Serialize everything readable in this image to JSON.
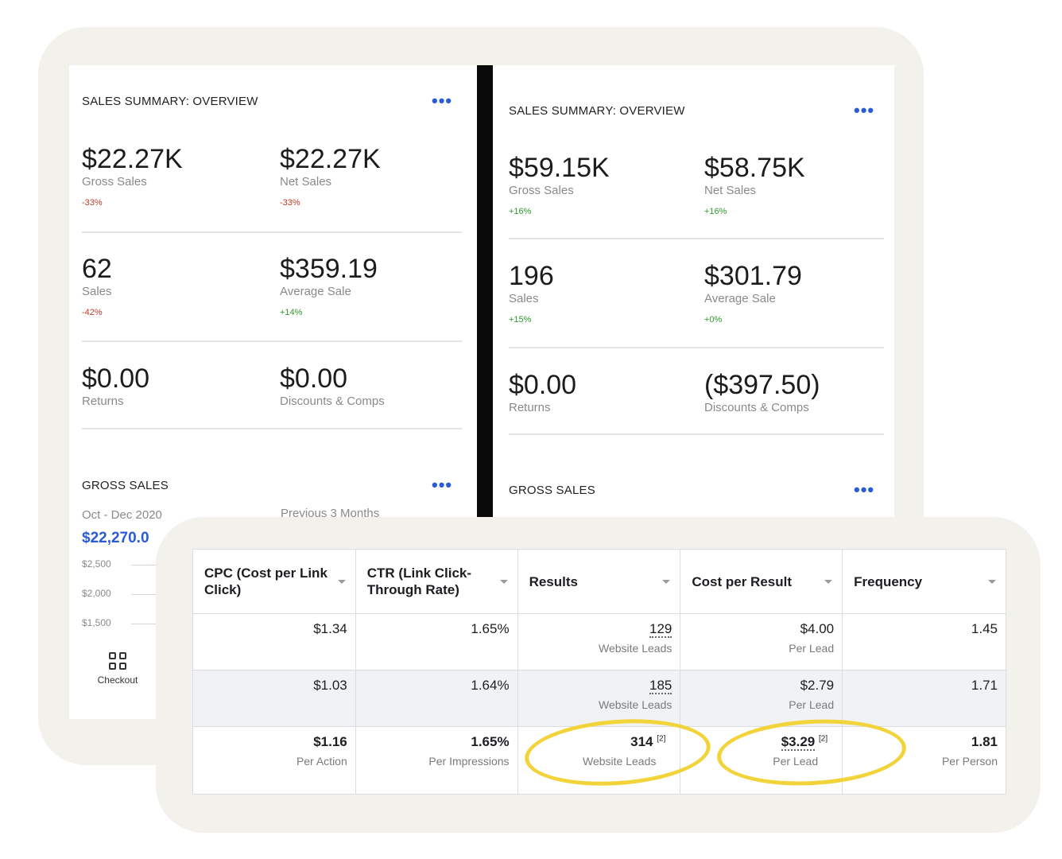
{
  "colors": {
    "accent": "#2a5bd7",
    "negative": "#c0392b",
    "positive": "#2e9a2e",
    "highlight": "#f2d43a",
    "frame": "#f3f1ec"
  },
  "left": {
    "title": "SALES SUMMARY: OVERVIEW",
    "menu": "•••",
    "metrics": [
      {
        "value": "$22.27K",
        "label": "Gross Sales",
        "change": "-33%"
      },
      {
        "value": "$22.27K",
        "label": "Net Sales",
        "change": "-33%"
      },
      {
        "value": "62",
        "label": "Sales",
        "change": "-42%"
      },
      {
        "value": "$359.19",
        "label": "Average Sale",
        "change": "+14%"
      },
      {
        "value": "$0.00",
        "label": "Returns"
      },
      {
        "value": "$0.00",
        "label": "Discounts & Comps"
      }
    ],
    "gross": {
      "title": "GROSS SALES",
      "menu": "•••",
      "period": "Oct - Dec 2020",
      "compare": "Previous 3 Months",
      "amount": "$22,270.0",
      "ticks": [
        "$2,500",
        "$2,000",
        "$1,500"
      ]
    },
    "nav": {
      "checkout_label": "Checkout",
      "checkout_icon": "grid-icon"
    }
  },
  "right": {
    "title": "SALES SUMMARY: OVERVIEW",
    "menu": "•••",
    "metrics": [
      {
        "value": "$59.15K",
        "label": "Gross Sales",
        "change": "+16%"
      },
      {
        "value": "$58.75K",
        "label": "Net Sales",
        "change": "+16%"
      },
      {
        "value": "196",
        "label": "Sales",
        "change": "+15%"
      },
      {
        "value": "$301.79",
        "label": "Average Sale",
        "change": "+0%"
      },
      {
        "value": "$0.00",
        "label": "Returns"
      },
      {
        "value": "($397.50)",
        "label": "Discounts & Comps"
      }
    ],
    "gross": {
      "title": "GROSS SALES",
      "menu": "•••"
    }
  },
  "ads_table": {
    "headers": [
      "CPC (Cost per Link Click)",
      "CTR (Link Click-Through Rate)",
      "Results",
      "Cost per Result",
      "Frequency"
    ],
    "rows": [
      {
        "cpc": "$1.34",
        "ctr": "1.65%",
        "results": "129",
        "results_sub": "Website Leads",
        "cpr": "$4.00",
        "cpr_sub": "Per Lead",
        "freq": "1.45"
      },
      {
        "cpc": "$1.03",
        "ctr": "1.64%",
        "results": "185",
        "results_sub": "Website Leads",
        "cpr": "$2.79",
        "cpr_sub": "Per Lead",
        "freq": "1.71"
      }
    ],
    "total": {
      "cpc": "$1.16",
      "cpc_sub": "Per Action",
      "ctr": "1.65%",
      "ctr_sub": "Per Impressions",
      "results": "314",
      "results_note": "[2]",
      "results_sub": "Website Leads",
      "cpr": "$3.29",
      "cpr_note": "[2]",
      "cpr_sub": "Per Lead",
      "freq": "1.81",
      "freq_sub": "Per Person"
    }
  }
}
